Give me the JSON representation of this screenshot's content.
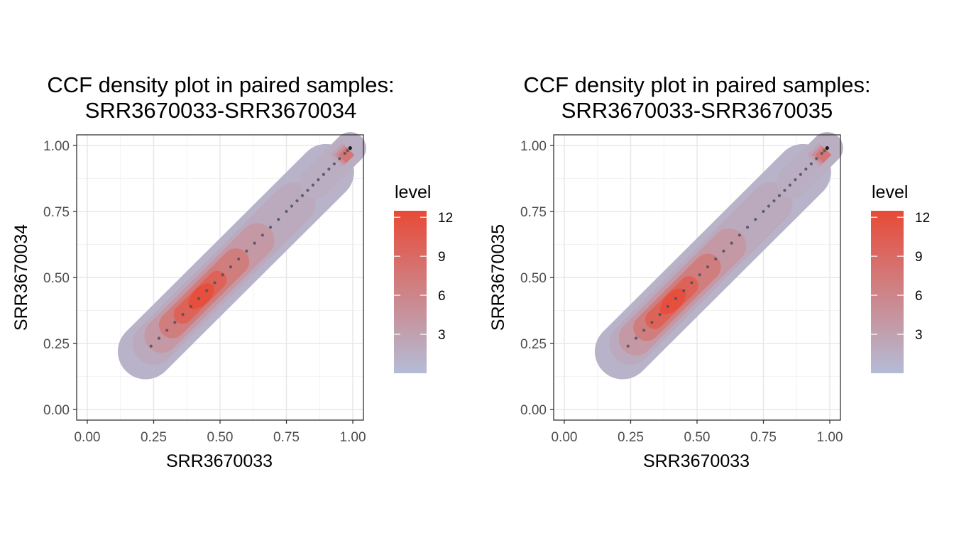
{
  "chart_data": [
    {
      "type": "scatter",
      "subtype": "density-contour-filled",
      "title_line1": "CCF density plot in paired samples:",
      "title_line2": "SRR3670033-SRR3670034",
      "xlabel": "SRR3670033",
      "ylabel": "SRR3670034",
      "xlim": [
        -0.04,
        1.04
      ],
      "ylim": [
        -0.04,
        1.04
      ],
      "xticks": [
        0.0,
        0.25,
        0.5,
        0.75,
        1.0
      ],
      "yticks": [
        0.0,
        0.25,
        0.5,
        0.75,
        1.0
      ],
      "xtick_labels": [
        "0.00",
        "0.25",
        "0.50",
        "0.75",
        "1.00"
      ],
      "ytick_labels": [
        "0.00",
        "0.25",
        "0.50",
        "0.75",
        "1.00"
      ],
      "grid": true,
      "legend": {
        "title": "level",
        "placement": "right",
        "range": [
          0,
          12.5
        ],
        "ticks": [
          3,
          6,
          9,
          12
        ],
        "tick_labels": [
          "3",
          "6",
          "9",
          "12"
        ],
        "color_low": "#b4bcd6",
        "color_high": "#e84a37"
      },
      "density": {
        "peak_center": [
          0.43,
          0.43
        ],
        "peak_level": 12,
        "bands": [
          {
            "level": 1,
            "from": [
              0.22,
              0.22
            ],
            "to": [
              0.9,
              0.9
            ],
            "half_width": 0.105
          },
          {
            "level": 2,
            "from": [
              0.25,
              0.25
            ],
            "to": [
              0.78,
              0.78
            ],
            "half_width": 0.08
          },
          {
            "level": 4,
            "from": [
              0.28,
              0.28
            ],
            "to": [
              0.64,
              0.64
            ],
            "half_width": 0.065
          },
          {
            "level": 7,
            "from": [
              0.32,
              0.32
            ],
            "to": [
              0.56,
              0.56
            ],
            "half_width": 0.05
          },
          {
            "level": 10,
            "from": [
              0.36,
              0.36
            ],
            "to": [
              0.49,
              0.49
            ],
            "half_width": 0.035
          },
          {
            "level": 12,
            "from": [
              0.4,
              0.4
            ],
            "to": [
              0.45,
              0.45
            ],
            "half_width": 0.02
          }
        ]
      },
      "points": [
        [
          0.24,
          0.24
        ],
        [
          0.27,
          0.27
        ],
        [
          0.3,
          0.3
        ],
        [
          0.33,
          0.33
        ],
        [
          0.36,
          0.36
        ],
        [
          0.39,
          0.39
        ],
        [
          0.42,
          0.42
        ],
        [
          0.45,
          0.45
        ],
        [
          0.48,
          0.48
        ],
        [
          0.51,
          0.51
        ],
        [
          0.54,
          0.54
        ],
        [
          0.57,
          0.57
        ],
        [
          0.6,
          0.6
        ],
        [
          0.63,
          0.63
        ],
        [
          0.66,
          0.66
        ],
        [
          0.69,
          0.69
        ],
        [
          0.72,
          0.72
        ],
        [
          0.75,
          0.75
        ],
        [
          0.77,
          0.77
        ],
        [
          0.79,
          0.79
        ],
        [
          0.81,
          0.81
        ],
        [
          0.83,
          0.83
        ],
        [
          0.85,
          0.85
        ],
        [
          0.87,
          0.87
        ],
        [
          0.89,
          0.89
        ],
        [
          0.91,
          0.91
        ],
        [
          0.93,
          0.93
        ],
        [
          0.95,
          0.95
        ],
        [
          0.97,
          0.97
        ],
        [
          0.98,
          0.98
        ],
        [
          0.99,
          0.99
        ]
      ]
    },
    {
      "type": "scatter",
      "subtype": "density-contour-filled",
      "title_line1": "CCF density plot in paired samples:",
      "title_line2": "SRR3670033-SRR3670035",
      "xlabel": "SRR3670033",
      "ylabel": "SRR3670035",
      "xlim": [
        -0.04,
        1.04
      ],
      "ylim": [
        -0.04,
        1.04
      ],
      "xticks": [
        0.0,
        0.25,
        0.5,
        0.75,
        1.0
      ],
      "yticks": [
        0.0,
        0.25,
        0.5,
        0.75,
        1.0
      ],
      "xtick_labels": [
        "0.00",
        "0.25",
        "0.50",
        "0.75",
        "1.00"
      ],
      "ytick_labels": [
        "0.00",
        "0.25",
        "0.50",
        "0.75",
        "1.00"
      ],
      "grid": true,
      "legend": {
        "title": "level",
        "placement": "right",
        "range": [
          0,
          12.5
        ],
        "ticks": [
          3,
          6,
          9,
          12
        ],
        "tick_labels": [
          "3",
          "6",
          "9",
          "12"
        ],
        "color_low": "#b4bcd6",
        "color_high": "#e84a37"
      },
      "density": {
        "peak_center": [
          0.41,
          0.41
        ],
        "peak_level": 12,
        "bands": [
          {
            "level": 1,
            "from": [
              0.22,
              0.22
            ],
            "to": [
              0.9,
              0.9
            ],
            "half_width": 0.105
          },
          {
            "level": 2,
            "from": [
              0.25,
              0.25
            ],
            "to": [
              0.78,
              0.78
            ],
            "half_width": 0.08
          },
          {
            "level": 4,
            "from": [
              0.27,
              0.27
            ],
            "to": [
              0.62,
              0.62
            ],
            "half_width": 0.065
          },
          {
            "level": 7,
            "from": [
              0.31,
              0.31
            ],
            "to": [
              0.54,
              0.54
            ],
            "half_width": 0.05
          },
          {
            "level": 10,
            "from": [
              0.34,
              0.34
            ],
            "to": [
              0.47,
              0.47
            ],
            "half_width": 0.035
          },
          {
            "level": 12,
            "from": [
              0.38,
              0.38
            ],
            "to": [
              0.43,
              0.43
            ],
            "half_width": 0.02
          }
        ]
      },
      "points": [
        [
          0.24,
          0.24
        ],
        [
          0.27,
          0.27
        ],
        [
          0.3,
          0.3
        ],
        [
          0.33,
          0.33
        ],
        [
          0.36,
          0.36
        ],
        [
          0.39,
          0.39
        ],
        [
          0.42,
          0.42
        ],
        [
          0.45,
          0.45
        ],
        [
          0.48,
          0.48
        ],
        [
          0.51,
          0.51
        ],
        [
          0.54,
          0.54
        ],
        [
          0.57,
          0.57
        ],
        [
          0.6,
          0.6
        ],
        [
          0.63,
          0.63
        ],
        [
          0.66,
          0.66
        ],
        [
          0.69,
          0.69
        ],
        [
          0.72,
          0.72
        ],
        [
          0.75,
          0.75
        ],
        [
          0.77,
          0.77
        ],
        [
          0.79,
          0.79
        ],
        [
          0.81,
          0.81
        ],
        [
          0.83,
          0.83
        ],
        [
          0.85,
          0.85
        ],
        [
          0.87,
          0.87
        ],
        [
          0.89,
          0.89
        ],
        [
          0.91,
          0.91
        ],
        [
          0.93,
          0.93
        ],
        [
          0.95,
          0.95
        ],
        [
          0.97,
          0.97
        ],
        [
          0.98,
          0.98
        ],
        [
          0.99,
          0.99
        ]
      ]
    }
  ]
}
